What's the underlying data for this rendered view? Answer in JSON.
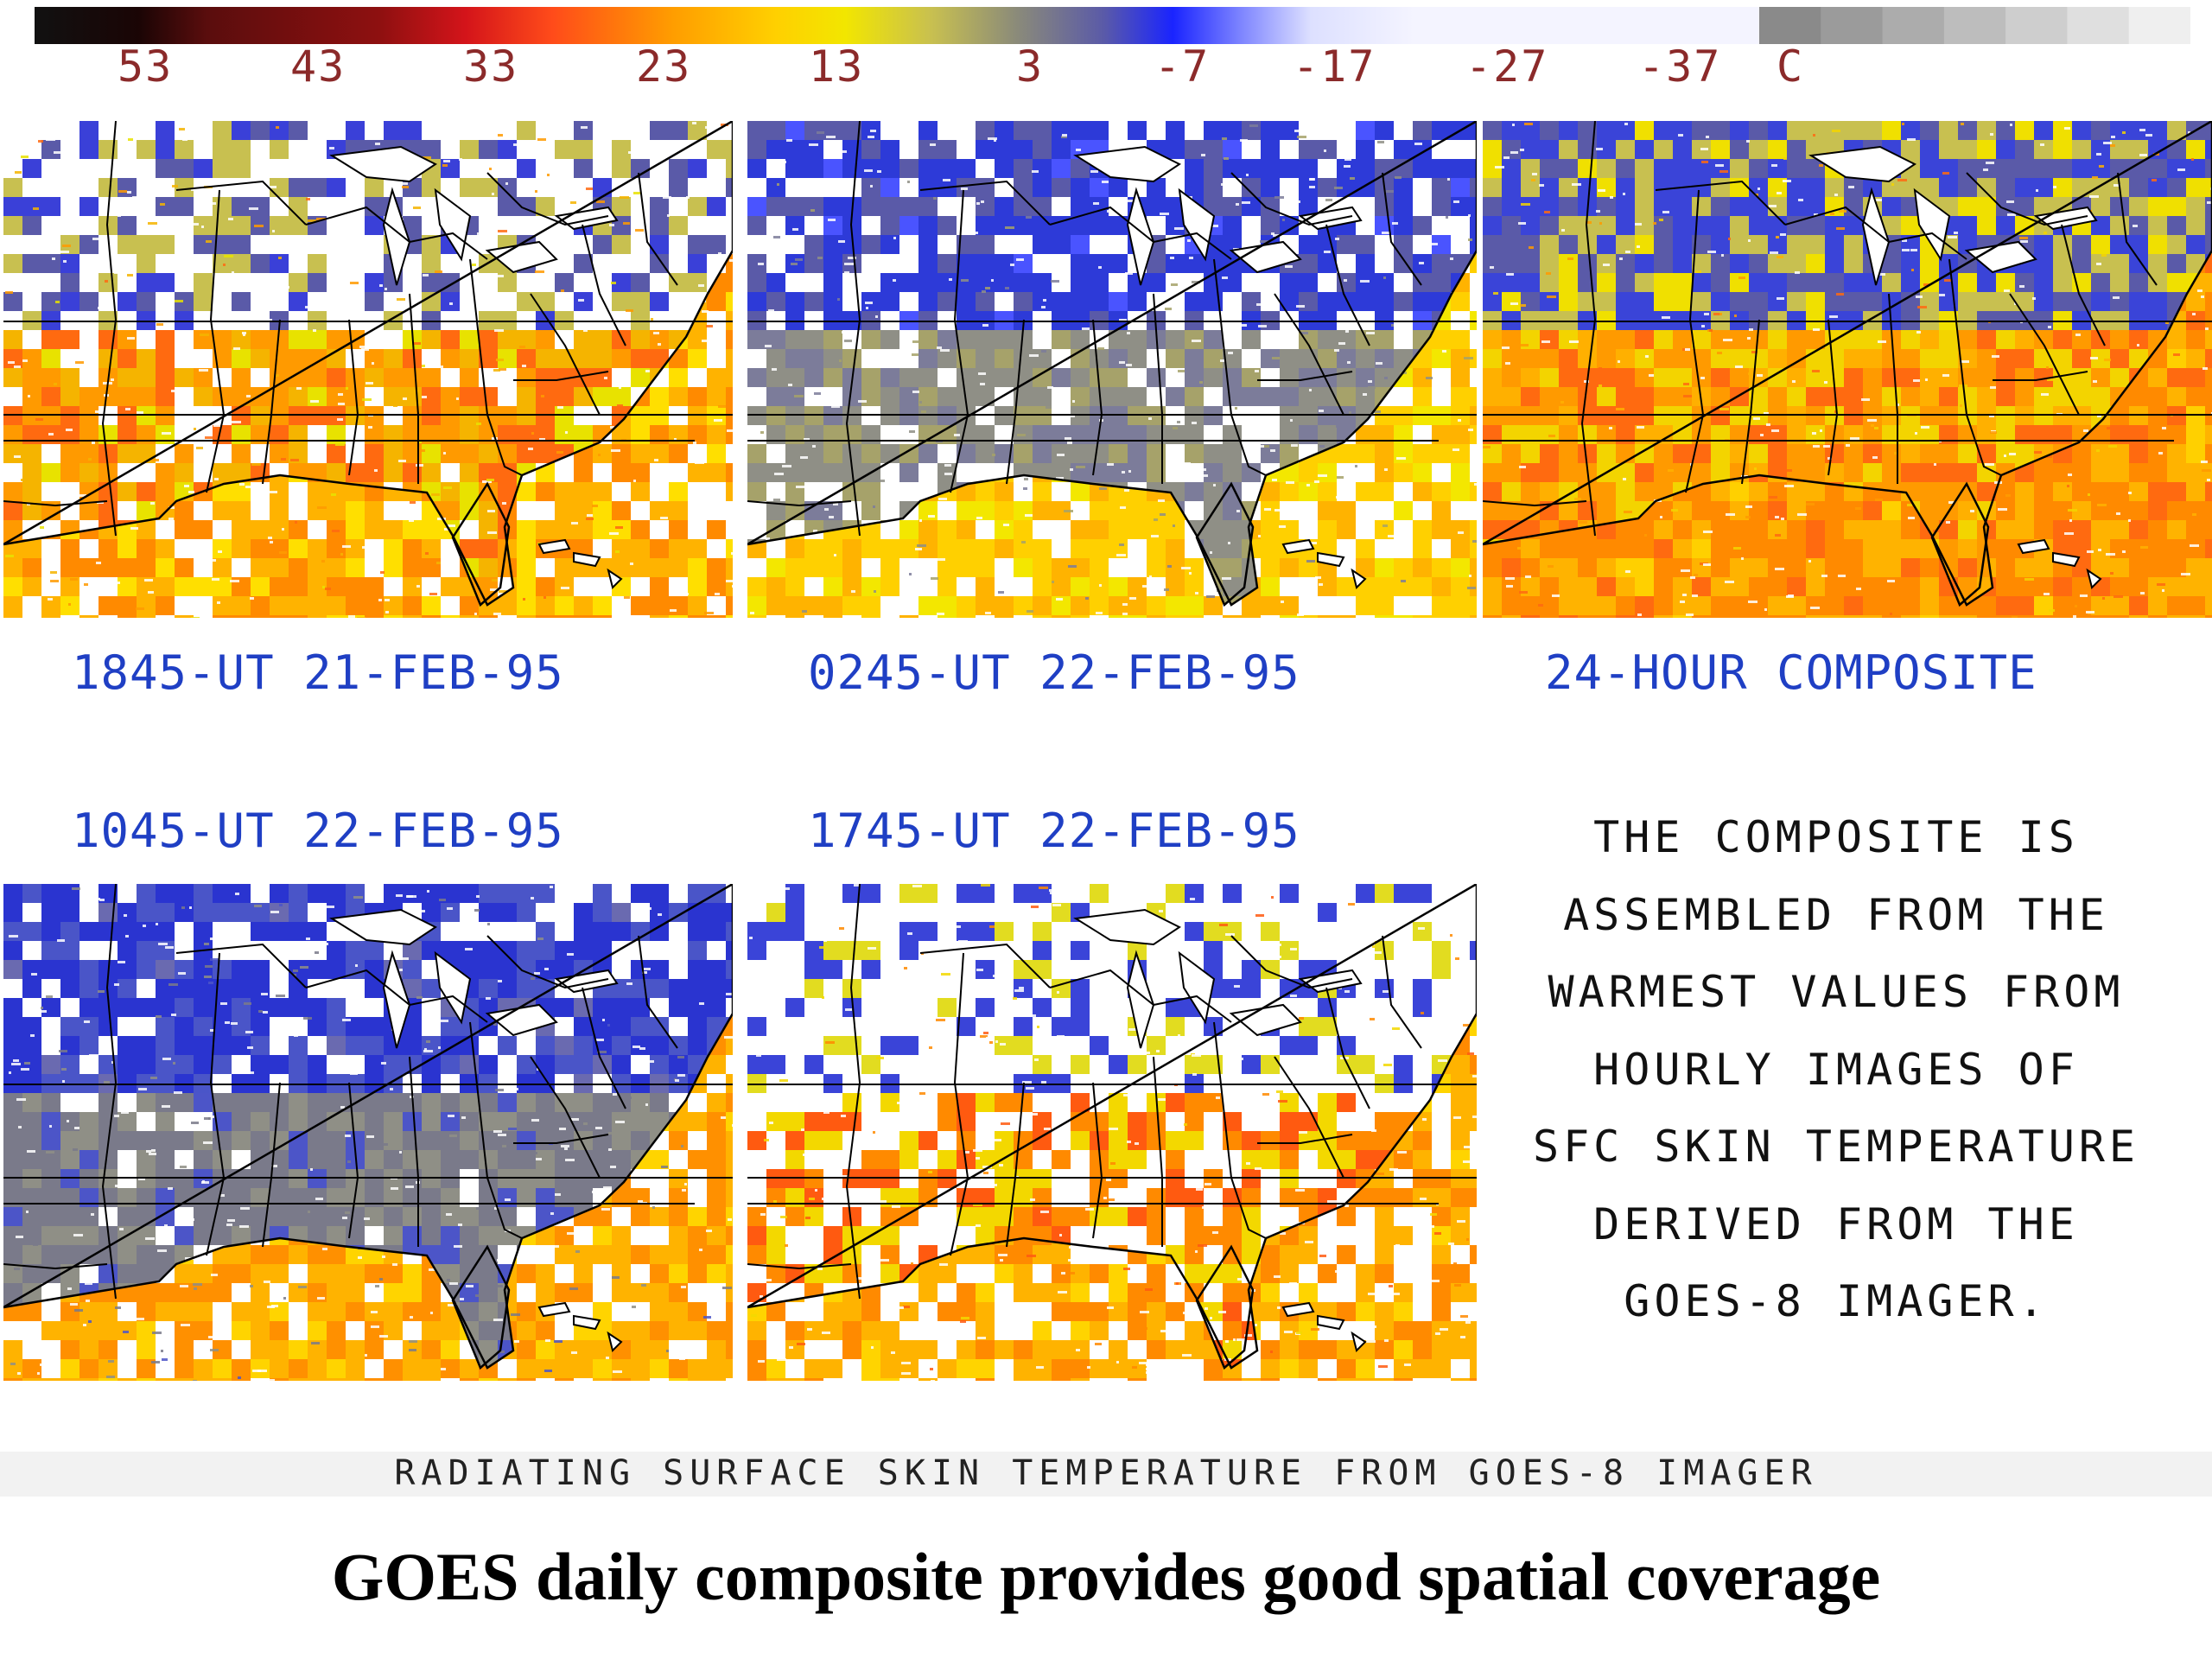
{
  "colorbar": {
    "ticks": [
      "53",
      "43",
      "33",
      "23",
      "13",
      "3",
      "-7",
      "-17",
      "-27",
      "-37"
    ],
    "unit": "C",
    "colors": [
      "#111111",
      "#5a0d0d",
      "#c0141a",
      "#ff3a1a",
      "#ff9d00",
      "#f2e600",
      "#a6a24e",
      "#7f7f90",
      "#1a24ff",
      "#d8dcff",
      "#f5f5ff",
      "#8c8c8c",
      "#dcdcdc"
    ]
  },
  "panels": [
    {
      "title": "1845-UT 21-FEB-95",
      "scheme": "warm",
      "seed": 11
    },
    {
      "title": "0245-UT 22-FEB-95",
      "scheme": "cool",
      "seed": 23
    },
    {
      "title": "24-HOUR COMPOSITE",
      "scheme": "composite",
      "seed": 37
    },
    {
      "title": "1045-UT 22-FEB-95",
      "scheme": "coldest",
      "seed": 51
    },
    {
      "title": "1745-UT 22-FEB-95",
      "scheme": "cloudy",
      "seed": 67
    }
  ],
  "note_lines": [
    "THE COMPOSITE IS",
    "ASSEMBLED FROM THE",
    "WARMEST VALUES FROM",
    "HOURLY IMAGES OF",
    "SFC SKIN TEMPERATURE",
    "DERIVED FROM THE",
    "GOES-8 IMAGER."
  ],
  "footer_caption": "RADIATING SURFACE SKIN TEMPERATURE FROM GOES-8 IMAGER",
  "headline": "GOES daily composite provides good spatial coverage"
}
